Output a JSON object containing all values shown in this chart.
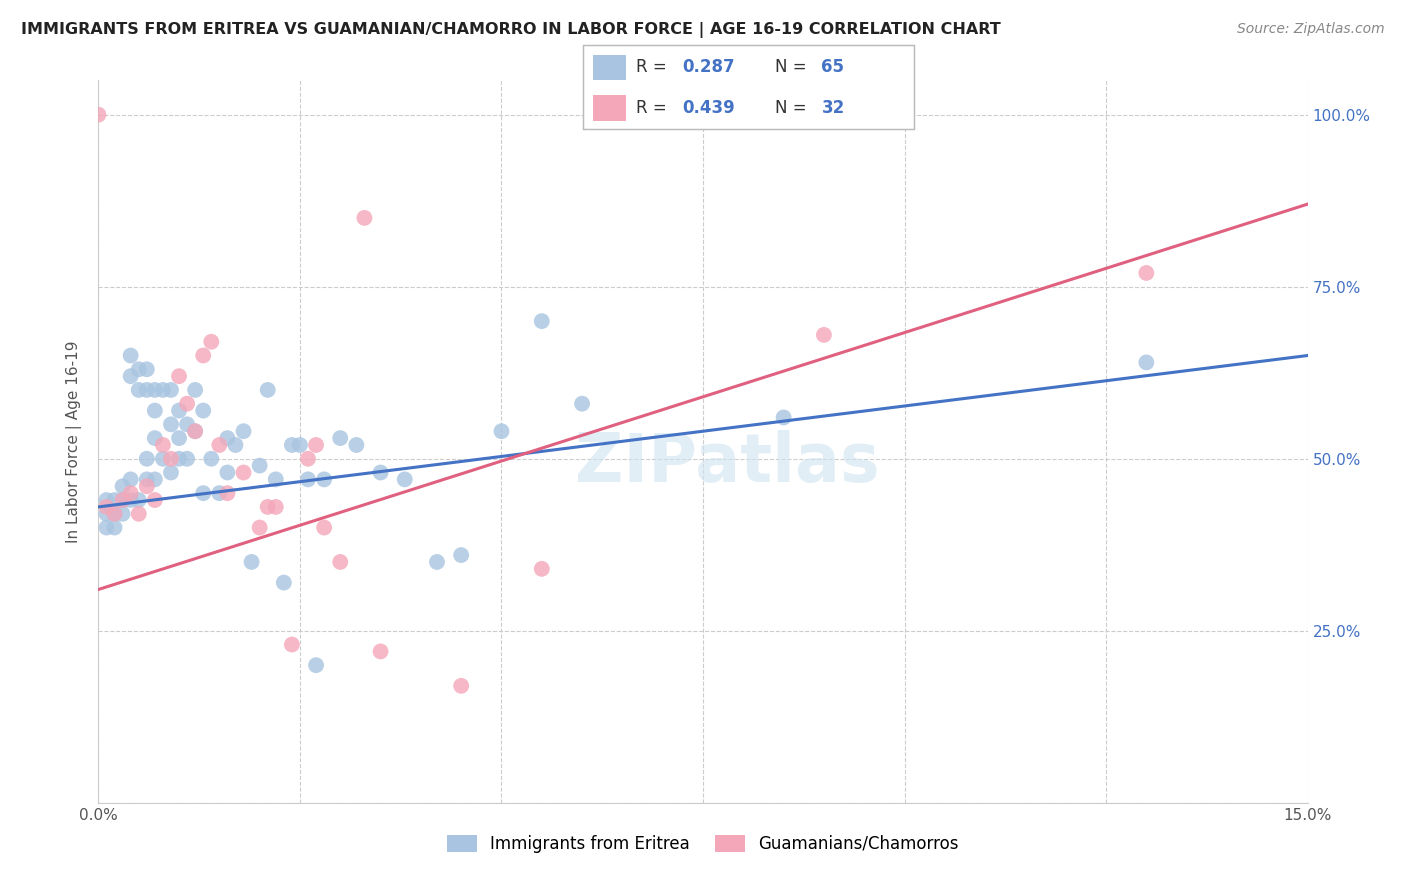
{
  "title": "IMMIGRANTS FROM ERITREA VS GUAMANIAN/CHAMORRO IN LABOR FORCE | AGE 16-19 CORRELATION CHART",
  "source": "Source: ZipAtlas.com",
  "ylabel": "In Labor Force | Age 16-19",
  "xlim": [
    0.0,
    0.15
  ],
  "ylim": [
    0.0,
    1.05
  ],
  "blue_R": 0.287,
  "blue_N": 65,
  "pink_R": 0.439,
  "pink_N": 32,
  "blue_color": "#a8c4e0",
  "pink_color": "#f4a7b9",
  "blue_line_color": "#4472c4",
  "pink_line_color": "#e06080",
  "watermark": "ZIPatlas",
  "blue_line_x0": 0.0,
  "blue_line_y0": 0.43,
  "blue_line_x1": 0.15,
  "blue_line_y1": 0.65,
  "pink_line_x0": 0.0,
  "pink_line_y0": 0.31,
  "pink_line_x1": 0.15,
  "pink_line_y1": 0.87,
  "blue_scatter_x": [
    0.001,
    0.001,
    0.001,
    0.002,
    0.002,
    0.002,
    0.003,
    0.003,
    0.003,
    0.004,
    0.004,
    0.004,
    0.004,
    0.005,
    0.005,
    0.005,
    0.006,
    0.006,
    0.006,
    0.006,
    0.007,
    0.007,
    0.007,
    0.007,
    0.008,
    0.008,
    0.009,
    0.009,
    0.009,
    0.01,
    0.01,
    0.01,
    0.011,
    0.011,
    0.012,
    0.012,
    0.013,
    0.013,
    0.014,
    0.015,
    0.016,
    0.016,
    0.017,
    0.018,
    0.019,
    0.02,
    0.021,
    0.022,
    0.023,
    0.024,
    0.025,
    0.026,
    0.027,
    0.028,
    0.03,
    0.032,
    0.035,
    0.038,
    0.042,
    0.045,
    0.05,
    0.055,
    0.06,
    0.085,
    0.13
  ],
  "blue_scatter_y": [
    0.44,
    0.42,
    0.4,
    0.44,
    0.42,
    0.4,
    0.46,
    0.44,
    0.42,
    0.65,
    0.62,
    0.47,
    0.44,
    0.63,
    0.6,
    0.44,
    0.63,
    0.6,
    0.5,
    0.47,
    0.6,
    0.57,
    0.53,
    0.47,
    0.6,
    0.5,
    0.6,
    0.55,
    0.48,
    0.57,
    0.53,
    0.5,
    0.55,
    0.5,
    0.6,
    0.54,
    0.57,
    0.45,
    0.5,
    0.45,
    0.53,
    0.48,
    0.52,
    0.54,
    0.35,
    0.49,
    0.6,
    0.47,
    0.32,
    0.52,
    0.52,
    0.47,
    0.2,
    0.47,
    0.53,
    0.52,
    0.48,
    0.47,
    0.35,
    0.36,
    0.54,
    0.7,
    0.58,
    0.56,
    0.64
  ],
  "pink_scatter_x": [
    0.0,
    0.001,
    0.002,
    0.003,
    0.004,
    0.005,
    0.006,
    0.007,
    0.008,
    0.009,
    0.01,
    0.011,
    0.012,
    0.013,
    0.014,
    0.015,
    0.016,
    0.018,
    0.02,
    0.021,
    0.022,
    0.024,
    0.026,
    0.027,
    0.028,
    0.03,
    0.033,
    0.035,
    0.045,
    0.055,
    0.09,
    0.13
  ],
  "pink_scatter_y": [
    1.0,
    0.43,
    0.42,
    0.44,
    0.45,
    0.42,
    0.46,
    0.44,
    0.52,
    0.5,
    0.62,
    0.58,
    0.54,
    0.65,
    0.67,
    0.52,
    0.45,
    0.48,
    0.4,
    0.43,
    0.43,
    0.23,
    0.5,
    0.52,
    0.4,
    0.35,
    0.85,
    0.22,
    0.17,
    0.34,
    0.68,
    0.77
  ]
}
